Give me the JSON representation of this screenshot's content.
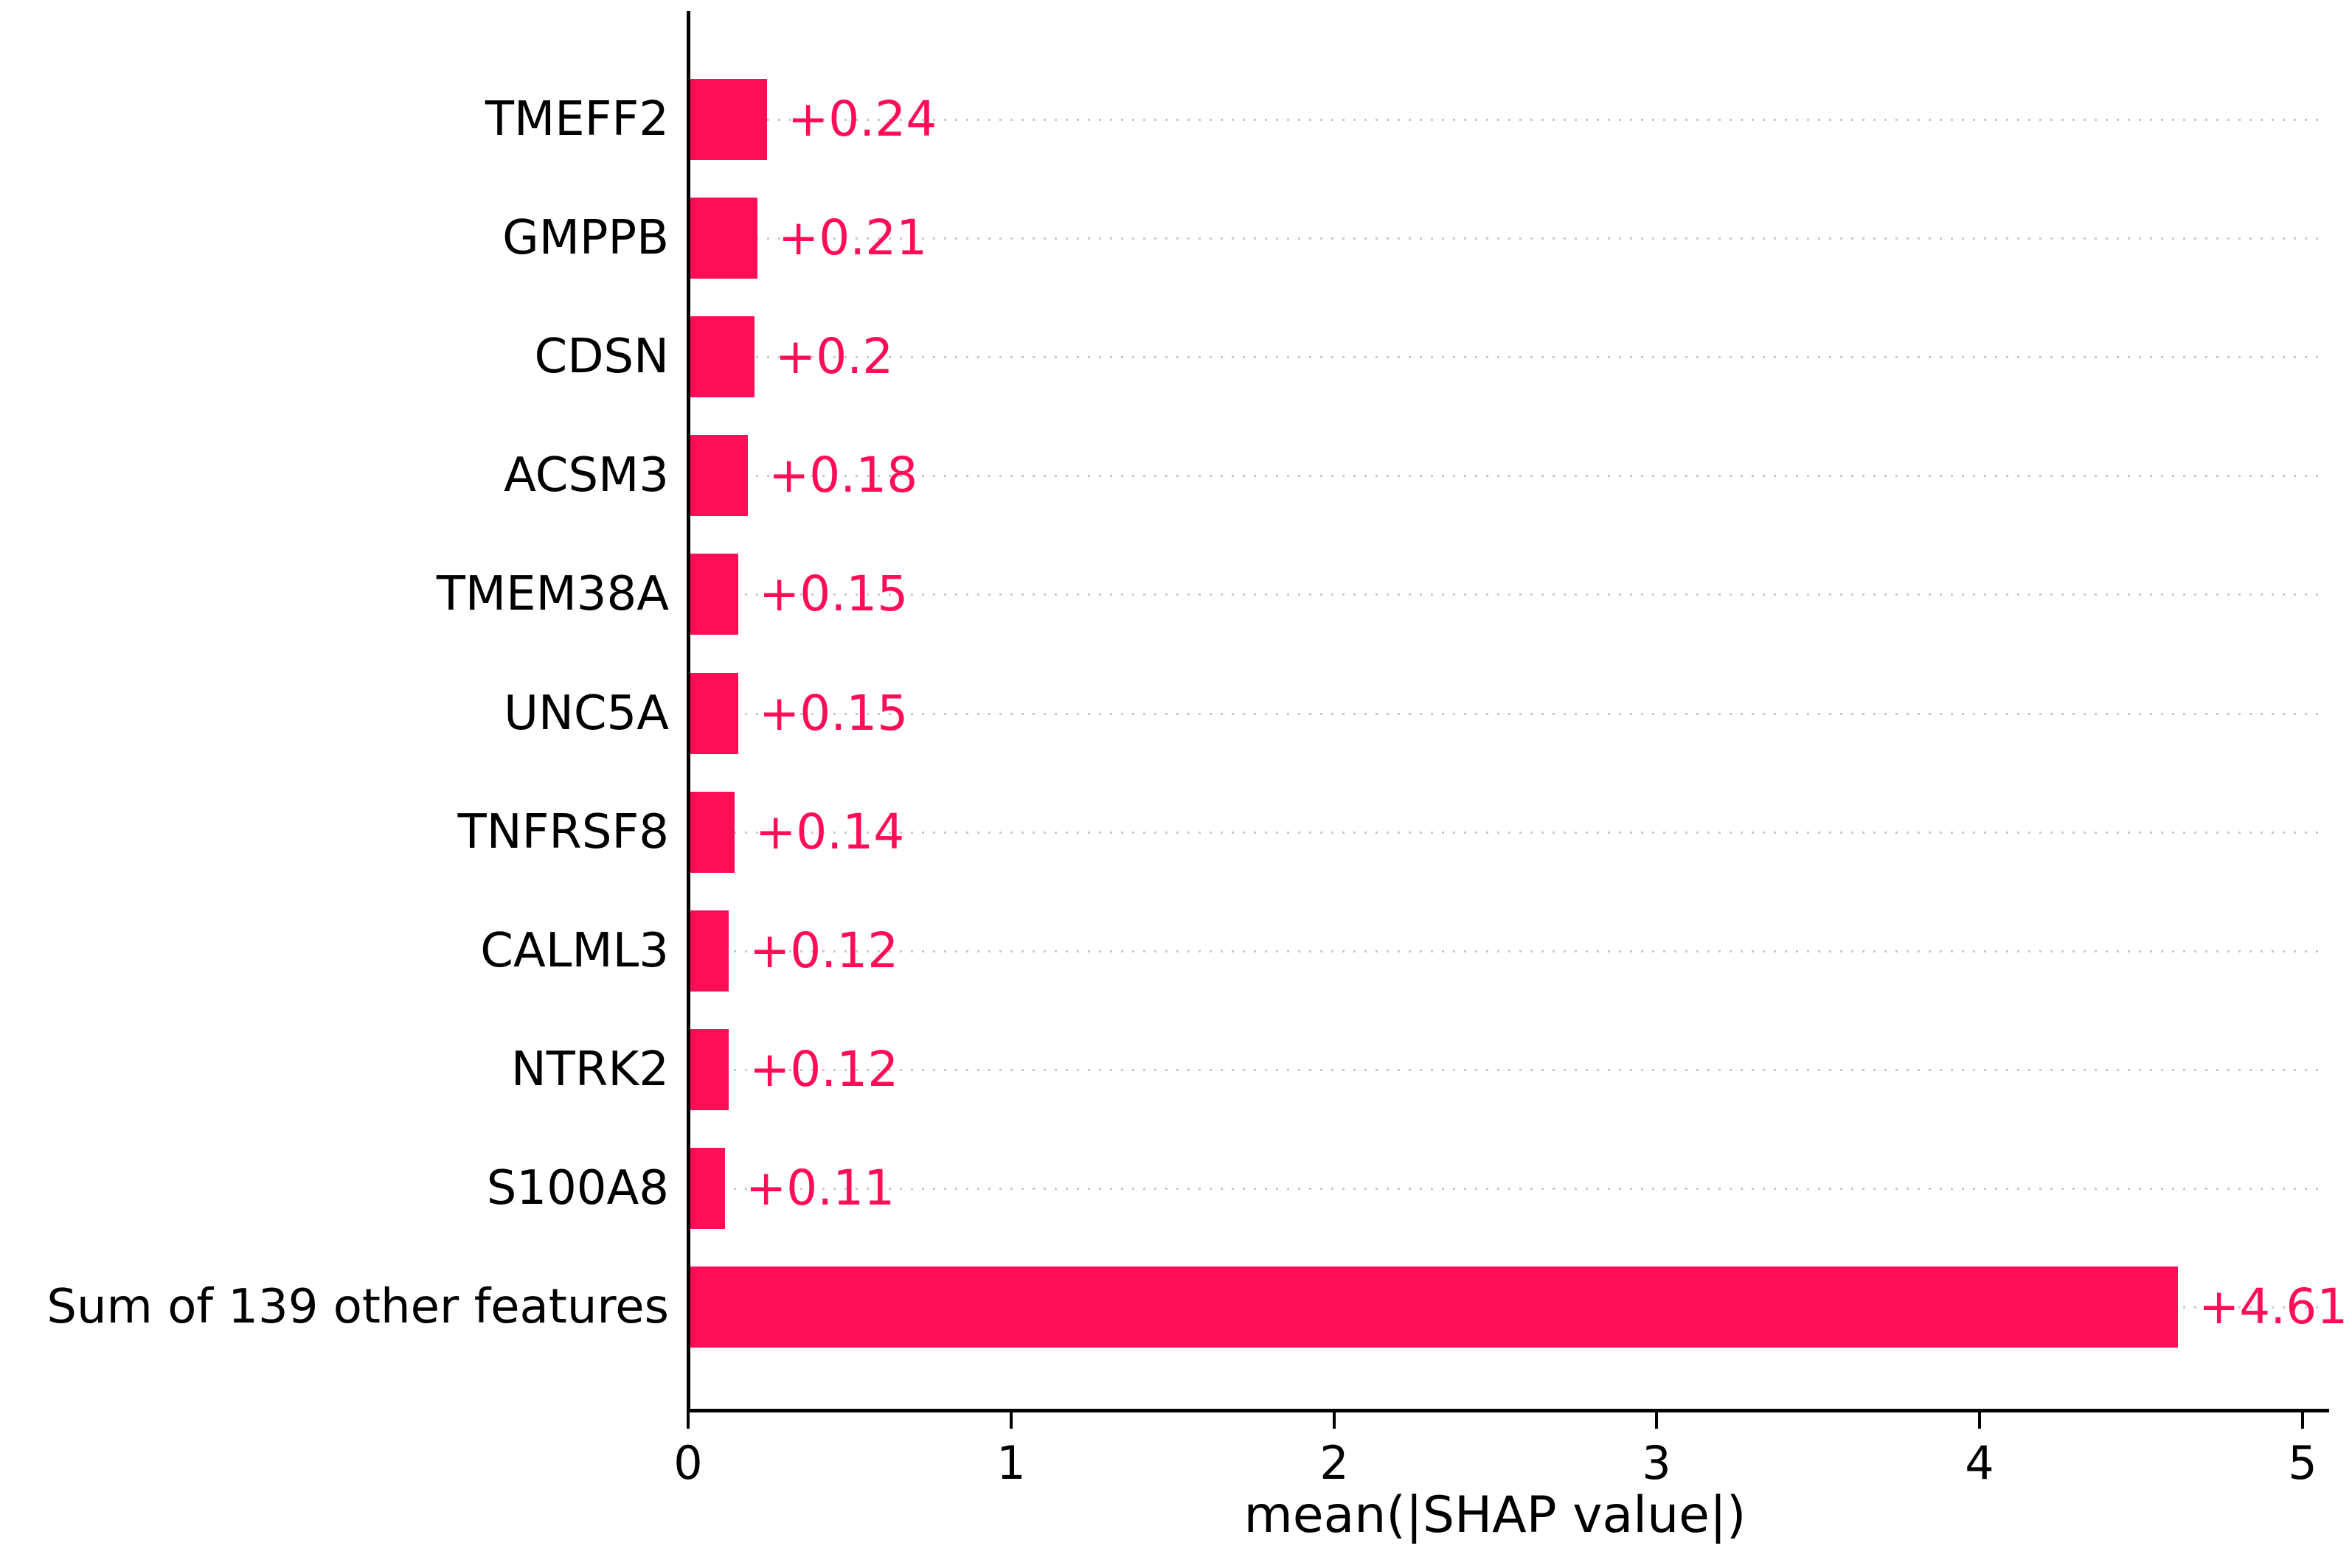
{
  "chart_data": {
    "type": "bar",
    "orientation": "horizontal",
    "title": "",
    "xlabel": "mean(|SHAP value|)",
    "ylabel": "",
    "categories": [
      "TMEFF2",
      "GMPPB",
      "CDSN",
      "ACSM3",
      "TMEM38A",
      "UNC5A",
      "TNFRSF8",
      "CALML3",
      "NTRK2",
      "S100A8",
      "Sum of 139 other features"
    ],
    "values": [
      0.24,
      0.21,
      0.2,
      0.18,
      0.15,
      0.15,
      0.14,
      0.12,
      0.12,
      0.11,
      4.61
    ],
    "value_labels": [
      "+0.24",
      "+0.21",
      "+0.2",
      "+0.18",
      "+0.15",
      "+0.15",
      "+0.14",
      "+0.12",
      "+0.12",
      "+0.11",
      "+4.61"
    ],
    "xlim": [
      0,
      5
    ],
    "xticks": [
      "0",
      "1",
      "2",
      "3",
      "4",
      "5"
    ],
    "grid": "dotted horizontal gridlines",
    "legend": "none",
    "bar_color": "#ff0d57",
    "value_label_color": "#ff0d57",
    "axis_color": "#000000",
    "gridline_color": "#c9c9c9",
    "background_color": "#ffffff"
  }
}
